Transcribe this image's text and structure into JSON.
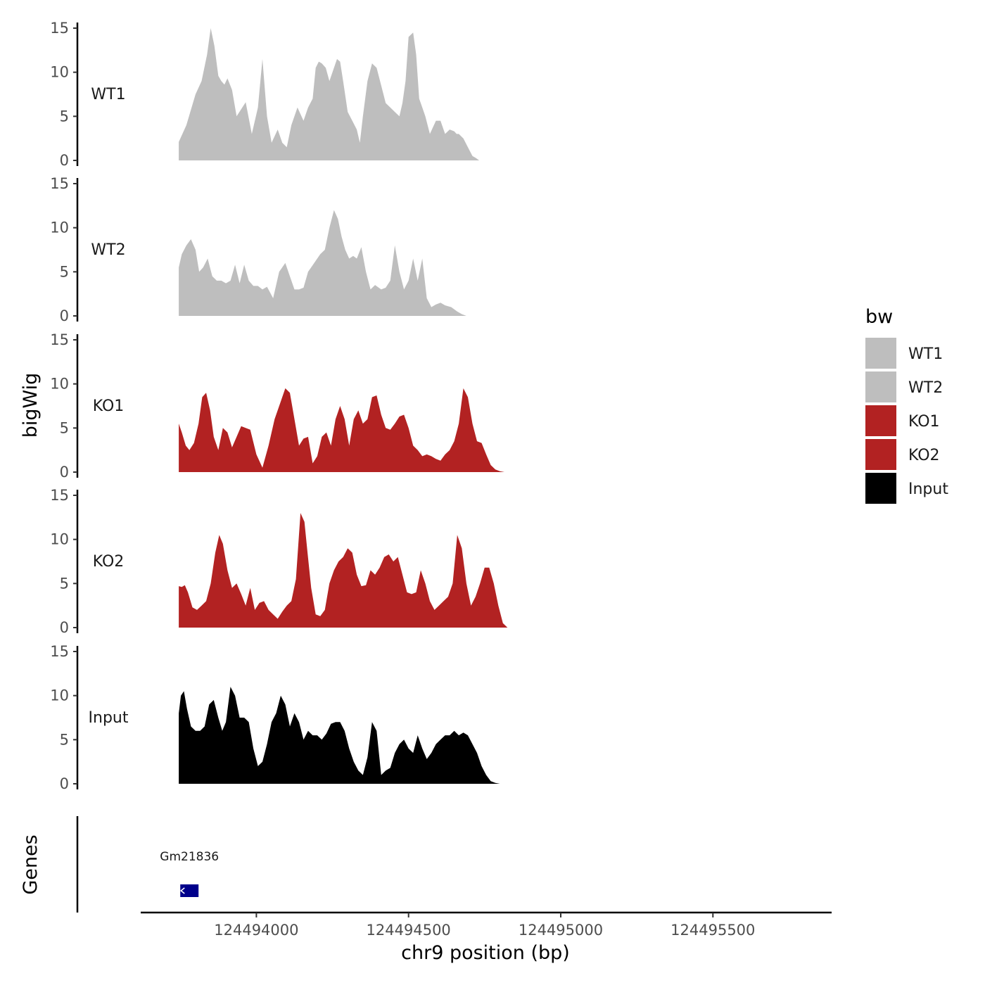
{
  "chart_data": {
    "type": "area",
    "xlabel": "chr9 position (bp)",
    "ylabel": "bigWig",
    "genes_label": "Genes",
    "xlim": [
      124493620,
      124495890
    ],
    "ylim": [
      0,
      15
    ],
    "x_ticks": [
      124494000,
      124494500,
      124495000,
      124495500
    ],
    "y_ticks": [
      0,
      5,
      10,
      15
    ],
    "legend": {
      "title": "bw",
      "placement": "right"
    },
    "genes": [
      {
        "name": "Gm21836",
        "start": 124493750,
        "end": 124493810,
        "color": "#00008b"
      }
    ],
    "series": [
      {
        "name": "WT1",
        "color": "#bebebe",
        "x": [
          124493745,
          124493770,
          124493800,
          124493820,
          124493838,
          124493850,
          124493862,
          124493875,
          124493885,
          124493895,
          124493905,
          124493920,
          124493935,
          124493950,
          124493965,
          124493985,
          124494005,
          124494020,
          124494035,
          124494050,
          124494070,
          124494085,
          124494100,
          124494115,
          124494135,
          124494155,
          124494170,
          124494185,
          124494195,
          124494205,
          124494215,
          124494228,
          124494240,
          124494255,
          124494265,
          124494275,
          124494285,
          124494300,
          124494315,
          124494330,
          124494340,
          124494350,
          124494365,
          124494380,
          124494395,
          124494410,
          124494425,
          124494440,
          124494455,
          124494470,
          124494480,
          124494490,
          124494500,
          124494515,
          124494525,
          124494535,
          124494545,
          124494555,
          124494570,
          124494590,
          124494605,
          124494620,
          124494635,
          124494650,
          124494658,
          124494665,
          124494680,
          124494695,
          124494710,
          124494720,
          124494732,
          124494745,
          124494760,
          124494770,
          124494780,
          124494795,
          124494810,
          124494820,
          124494835
        ],
        "values": [
          2.1,
          4.0,
          7.5,
          9.0,
          12.0,
          15.0,
          13.0,
          9.6,
          9.0,
          8.6,
          9.3,
          8.0,
          5.0,
          5.8,
          6.6,
          3.0,
          6.0,
          11.5,
          5.0,
          2.0,
          3.5,
          2.0,
          1.5,
          4.0,
          6.0,
          4.5,
          6.0,
          7.0,
          10.5,
          11.2,
          11.0,
          10.5,
          9.0,
          10.5,
          11.5,
          11.2,
          9.0,
          5.5,
          4.5,
          3.5,
          2.0,
          5.0,
          9.0,
          11.0,
          10.5,
          8.5,
          6.5,
          6.0,
          5.5,
          5.0,
          6.5,
          9.0,
          14.0,
          14.5,
          12.0,
          7.0,
          6.0,
          5.0,
          3.0,
          4.5,
          4.5,
          3.0,
          3.5,
          3.3,
          3.0,
          3.0,
          2.5,
          1.5,
          0.5,
          0.3,
          0,
          0,
          0,
          0,
          0,
          0,
          0,
          0,
          0
        ]
      },
      {
        "name": "WT2",
        "color": "#bebebe",
        "x": [
          124493745,
          124493755,
          124493770,
          124493785,
          124493800,
          124493812,
          124493825,
          124493840,
          124493855,
          124493870,
          124493885,
          124493900,
          124493915,
          124493930,
          124493945,
          124493960,
          124493975,
          124493990,
          124494005,
          124494020,
          124494035,
          124494055,
          124494075,
          124494095,
          124494110,
          124494125,
          124494140,
          124494155,
          124494170,
          124494190,
          124494210,
          124494225,
          124494240,
          124494255,
          124494268,
          124494280,
          124494292,
          124494305,
          124494318,
          124494330,
          124494345,
          124494360,
          124494375,
          124494390,
          124494410,
          124494425,
          124494440,
          124494455,
          124494470,
          124494485,
          124494500,
          124494515,
          124494530,
          124494545,
          124494560,
          124494575,
          124494590,
          124494605,
          124494620,
          124494640,
          124494660,
          124494675,
          124494690,
          124494705,
          124494720,
          124494735,
          124494750,
          124494765,
          124494780,
          124494795,
          124494810,
          124494825
        ],
        "values": [
          5.5,
          7.0,
          8.0,
          8.7,
          7.5,
          5.0,
          5.5,
          6.5,
          4.5,
          4.0,
          4.0,
          3.7,
          4.0,
          5.8,
          3.7,
          5.8,
          4.0,
          3.4,
          3.4,
          3.0,
          3.3,
          2.0,
          5.0,
          6.0,
          4.5,
          3.0,
          3.0,
          3.2,
          5.0,
          6.0,
          7.0,
          7.5,
          10.0,
          12.0,
          11.0,
          9.0,
          7.5,
          6.5,
          6.8,
          6.5,
          7.8,
          5.0,
          3.0,
          3.5,
          3.0,
          3.2,
          4.0,
          8.0,
          5.0,
          3.0,
          4.0,
          6.5,
          4.0,
          6.5,
          2.0,
          1.0,
          1.3,
          1.5,
          1.2,
          1.0,
          0.5,
          0.2,
          0,
          0,
          0,
          0,
          0,
          0,
          0,
          0,
          0,
          0
        ]
      },
      {
        "name": "KO1",
        "color": "#b22222",
        "x": [
          124493745,
          124493755,
          124493768,
          124493780,
          124493795,
          124493810,
          124493822,
          124493835,
          124493848,
          124493860,
          124493875,
          124493890,
          124493905,
          124493920,
          124493935,
          124493950,
          124493965,
          124493980,
          124494000,
          124494020,
          124494040,
          124494060,
          124494080,
          124494095,
          124494110,
          124494125,
          124494140,
          124494155,
          124494170,
          124494185,
          124494200,
          124494215,
          124494230,
          124494245,
          124494260,
          124494275,
          124494290,
          124494305,
          124494320,
          124494335,
          124494350,
          124494365,
          124494380,
          124494395,
          124494410,
          124494425,
          124494440,
          124494455,
          124494470,
          124494485,
          124494500,
          124494515,
          124494530,
          124494545,
          124494560,
          124494575,
          124494590,
          124494605,
          124494620,
          124494635,
          124494650,
          124494665,
          124494680,
          124494695,
          124494710,
          124494725,
          124494740,
          124494755,
          124494770,
          124494785,
          124494800,
          124494815,
          124494825,
          124494838
        ],
        "values": [
          5.5,
          4.5,
          3.0,
          2.5,
          3.3,
          5.5,
          8.5,
          9.0,
          7.0,
          4.0,
          2.5,
          5.0,
          4.5,
          2.8,
          4.0,
          5.2,
          5.0,
          4.8,
          2.0,
          0.5,
          3.0,
          6.0,
          8.0,
          9.5,
          9.0,
          6.0,
          3.0,
          3.8,
          4.0,
          1.0,
          1.8,
          4.0,
          4.5,
          3.0,
          6.0,
          7.5,
          6.0,
          3.0,
          6.0,
          7.0,
          5.5,
          6.0,
          8.5,
          8.7,
          6.5,
          5.0,
          4.8,
          5.5,
          6.3,
          6.5,
          5.0,
          3.0,
          2.5,
          1.8,
          2.0,
          1.8,
          1.5,
          1.3,
          2.0,
          2.5,
          3.5,
          5.5,
          9.5,
          8.5,
          5.5,
          3.5,
          3.3,
          2.0,
          0.8,
          0.3,
          0.1,
          0,
          0,
          0
        ]
      },
      {
        "name": "KO2",
        "color": "#b22222",
        "x": [
          124493745,
          124493755,
          124493765,
          124493775,
          124493790,
          124493805,
          124493820,
          124493835,
          124493850,
          124493865,
          124493878,
          124493890,
          124493905,
          124493920,
          124493935,
          124493950,
          124493965,
          124493980,
          124493995,
          124494010,
          124494025,
          124494040,
          124494055,
          124494070,
          124494085,
          124494100,
          124494115,
          124494130,
          124494145,
          124494158,
          124494168,
          124494180,
          124494195,
          124494210,
          124494225,
          124494240,
          124494255,
          124494270,
          124494285,
          124494300,
          124494315,
          124494330,
          124494345,
          124494360,
          124494375,
          124494390,
          124494405,
          124494420,
          124494435,
          124494450,
          124494465,
          124494480,
          124494495,
          124494510,
          124494525,
          124494540,
          124494555,
          124494570,
          124494585,
          124494600,
          124494615,
          124494630,
          124494645,
          124494660,
          124494675,
          124494690,
          124494705,
          124494720,
          124494735,
          124494750,
          124494765,
          124494780,
          124494795,
          124494810,
          124494825
        ],
        "values": [
          4.7,
          4.6,
          4.8,
          4.0,
          2.3,
          2.0,
          2.5,
          3.0,
          5.0,
          8.5,
          10.5,
          9.5,
          6.5,
          4.5,
          5.0,
          3.8,
          2.5,
          4.5,
          2.0,
          2.8,
          3.0,
          2.0,
          1.5,
          1.0,
          1.8,
          2.5,
          3.0,
          5.5,
          13.0,
          12.0,
          8.5,
          4.5,
          1.5,
          1.3,
          2.0,
          5.0,
          6.5,
          7.5,
          8.0,
          9.0,
          8.5,
          6.0,
          4.7,
          4.8,
          6.5,
          6.0,
          6.8,
          8.0,
          8.3,
          7.5,
          8.0,
          6.0,
          4.0,
          3.8,
          4.0,
          6.5,
          5.0,
          3.0,
          2.0,
          2.5,
          3.0,
          3.5,
          5.0,
          10.5,
          9.0,
          5.0,
          2.5,
          3.5,
          5.0,
          6.8,
          6.8,
          5.0,
          2.5,
          0.5,
          0
        ]
      },
      {
        "name": "Input",
        "color": "#000000",
        "x": [
          124493745,
          124493752,
          124493762,
          124493772,
          124493785,
          124493800,
          124493815,
          124493830,
          124493845,
          124493860,
          124493875,
          124493888,
          124493900,
          124493915,
          124493930,
          124493945,
          124493960,
          124493975,
          124493990,
          124494005,
          124494020,
          124494035,
          124494050,
          124494065,
          124494080,
          124494095,
          124494110,
          124494125,
          124494140,
          124494155,
          124494170,
          124494185,
          124494200,
          124494215,
          124494230,
          124494245,
          124494260,
          124494275,
          124494290,
          124494305,
          124494320,
          124494335,
          124494350,
          124494365,
          124494380,
          124494395,
          124494410,
          124494425,
          124494440,
          124494455,
          124494470,
          124494485,
          124494500,
          124494515,
          124494530,
          124494545,
          124494560,
          124494575,
          124494590,
          124494605,
          124494620,
          124494635,
          124494650,
          124494665,
          124494680,
          124494695,
          124494710,
          124494725,
          124494740,
          124494755,
          124494770,
          124494785,
          124494800,
          124494815,
          124494825
        ],
        "values": [
          8.0,
          10.0,
          10.5,
          8.5,
          6.5,
          6.0,
          6.0,
          6.5,
          9.0,
          9.5,
          7.5,
          6.0,
          7.0,
          11.0,
          10.0,
          7.5,
          7.5,
          7.0,
          4.0,
          2.0,
          2.5,
          4.5,
          7.0,
          8.0,
          10.0,
          9.0,
          6.5,
          8.0,
          7.0,
          5.0,
          6.0,
          5.5,
          5.5,
          5.0,
          5.7,
          6.8,
          7.0,
          7.0,
          6.0,
          4.0,
          2.5,
          1.5,
          1.0,
          3.0,
          7.0,
          6.0,
          1.0,
          1.5,
          1.8,
          3.5,
          4.5,
          5.0,
          4.0,
          3.5,
          5.5,
          4.0,
          2.8,
          3.5,
          4.5,
          5.0,
          5.5,
          5.5,
          6.0,
          5.5,
          5.8,
          5.5,
          4.5,
          3.5,
          2.0,
          1.0,
          0.3,
          0.1,
          0,
          0,
          0
        ]
      }
    ]
  }
}
